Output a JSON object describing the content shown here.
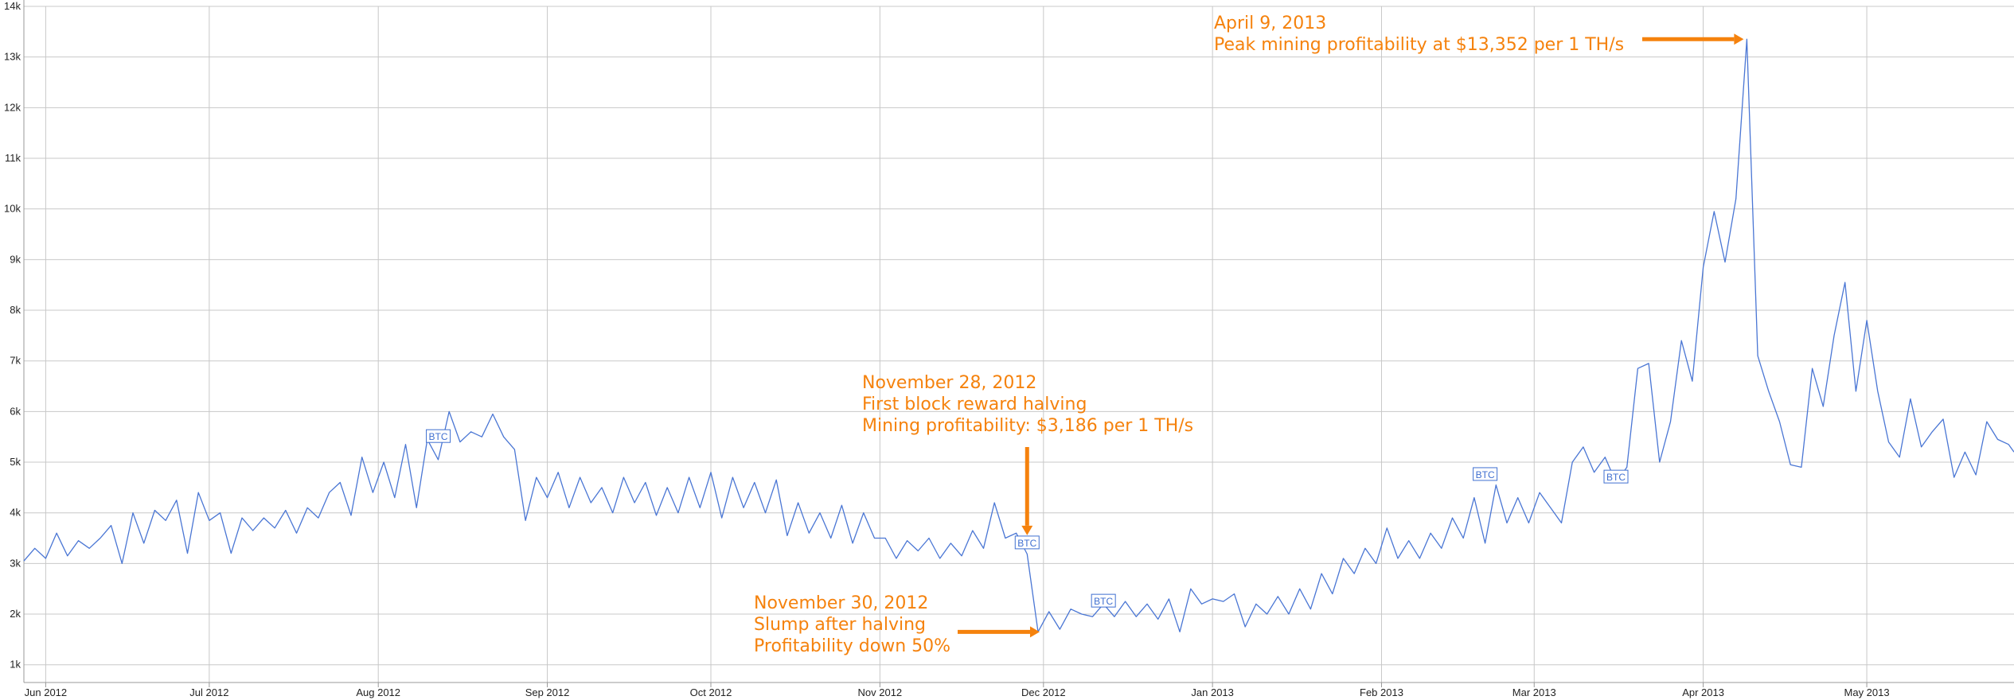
{
  "colors": {
    "line": "#4a76d4",
    "annotation": "#f5820d",
    "grid": "#c8c8c8",
    "flag": "#3f6fd0"
  },
  "chart_data": {
    "type": "line",
    "title": "",
    "xlabel": "",
    "ylabel": "",
    "x_range": [
      "2012-05-28",
      "2013-05-28"
    ],
    "ylim": [
      650,
      14000
    ],
    "grid": true,
    "yticks": [
      {
        "value": 1000,
        "label": "1k"
      },
      {
        "value": 2000,
        "label": "2k"
      },
      {
        "value": 3000,
        "label": "3k"
      },
      {
        "value": 4000,
        "label": "4k"
      },
      {
        "value": 5000,
        "label": "5k"
      },
      {
        "value": 6000,
        "label": "6k"
      },
      {
        "value": 7000,
        "label": "7k"
      },
      {
        "value": 8000,
        "label": "8k"
      },
      {
        "value": 9000,
        "label": "9k"
      },
      {
        "value": 10000,
        "label": "10k"
      },
      {
        "value": 11000,
        "label": "11k"
      },
      {
        "value": 12000,
        "label": "12k"
      },
      {
        "value": 13000,
        "label": "13k"
      },
      {
        "value": 14000,
        "label": "14k"
      }
    ],
    "xticks": [
      {
        "date": "2012-06-01",
        "label": "Jun 2012"
      },
      {
        "date": "2012-07-01",
        "label": "Jul 2012"
      },
      {
        "date": "2012-08-01",
        "label": "Aug 2012"
      },
      {
        "date": "2012-09-01",
        "label": "Sep 2012"
      },
      {
        "date": "2012-10-01",
        "label": "Oct 2012"
      },
      {
        "date": "2012-11-01",
        "label": "Nov 2012"
      },
      {
        "date": "2012-12-01",
        "label": "Dec 2012"
      },
      {
        "date": "2013-01-01",
        "label": "Jan 2013"
      },
      {
        "date": "2013-02-01",
        "label": "Feb 2013"
      },
      {
        "date": "2013-03-01",
        "label": "Mar 2013"
      },
      {
        "date": "2013-04-01",
        "label": "Apr 2013"
      },
      {
        "date": "2013-05-01",
        "label": "May 2013"
      }
    ],
    "series": [
      {
        "points": [
          [
            "2012-05-28",
            3050
          ],
          [
            "2012-05-30",
            3300
          ],
          [
            "2012-06-01",
            3100
          ],
          [
            "2012-06-03",
            3600
          ],
          [
            "2012-06-05",
            3150
          ],
          [
            "2012-06-07",
            3450
          ],
          [
            "2012-06-09",
            3300
          ],
          [
            "2012-06-11",
            3500
          ],
          [
            "2012-06-13",
            3750
          ],
          [
            "2012-06-15",
            3000
          ],
          [
            "2012-06-17",
            4000
          ],
          [
            "2012-06-19",
            3400
          ],
          [
            "2012-06-21",
            4050
          ],
          [
            "2012-06-23",
            3850
          ],
          [
            "2012-06-25",
            4250
          ],
          [
            "2012-06-27",
            3200
          ],
          [
            "2012-06-29",
            4400
          ],
          [
            "2012-07-01",
            3850
          ],
          [
            "2012-07-03",
            4000
          ],
          [
            "2012-07-05",
            3200
          ],
          [
            "2012-07-07",
            3900
          ],
          [
            "2012-07-09",
            3650
          ],
          [
            "2012-07-11",
            3900
          ],
          [
            "2012-07-13",
            3700
          ],
          [
            "2012-07-15",
            4050
          ],
          [
            "2012-07-17",
            3600
          ],
          [
            "2012-07-19",
            4100
          ],
          [
            "2012-07-21",
            3900
          ],
          [
            "2012-07-23",
            4400
          ],
          [
            "2012-07-25",
            4600
          ],
          [
            "2012-07-27",
            3950
          ],
          [
            "2012-07-29",
            5100
          ],
          [
            "2012-07-31",
            4400
          ],
          [
            "2012-08-02",
            5000
          ],
          [
            "2012-08-04",
            4300
          ],
          [
            "2012-08-06",
            5350
          ],
          [
            "2012-08-08",
            4100
          ],
          [
            "2012-08-10",
            5450
          ],
          [
            "2012-08-12",
            5050
          ],
          [
            "2012-08-14",
            6000
          ],
          [
            "2012-08-16",
            5400
          ],
          [
            "2012-08-18",
            5600
          ],
          [
            "2012-08-20",
            5500
          ],
          [
            "2012-08-22",
            5950
          ],
          [
            "2012-08-24",
            5500
          ],
          [
            "2012-08-26",
            5250
          ],
          [
            "2012-08-28",
            3850
          ],
          [
            "2012-08-30",
            4700
          ],
          [
            "2012-09-01",
            4300
          ],
          [
            "2012-09-03",
            4800
          ],
          [
            "2012-09-05",
            4100
          ],
          [
            "2012-09-07",
            4700
          ],
          [
            "2012-09-09",
            4200
          ],
          [
            "2012-09-11",
            4500
          ],
          [
            "2012-09-13",
            4000
          ],
          [
            "2012-09-15",
            4700
          ],
          [
            "2012-09-17",
            4200
          ],
          [
            "2012-09-19",
            4600
          ],
          [
            "2012-09-21",
            3950
          ],
          [
            "2012-09-23",
            4500
          ],
          [
            "2012-09-25",
            4000
          ],
          [
            "2012-09-27",
            4700
          ],
          [
            "2012-09-29",
            4100
          ],
          [
            "2012-10-01",
            4800
          ],
          [
            "2012-10-03",
            3900
          ],
          [
            "2012-10-05",
            4700
          ],
          [
            "2012-10-07",
            4100
          ],
          [
            "2012-10-09",
            4600
          ],
          [
            "2012-10-11",
            4000
          ],
          [
            "2012-10-13",
            4650
          ],
          [
            "2012-10-15",
            3550
          ],
          [
            "2012-10-17",
            4200
          ],
          [
            "2012-10-19",
            3600
          ],
          [
            "2012-10-21",
            4000
          ],
          [
            "2012-10-23",
            3500
          ],
          [
            "2012-10-25",
            4150
          ],
          [
            "2012-10-27",
            3400
          ],
          [
            "2012-10-29",
            4000
          ],
          [
            "2012-10-31",
            3500
          ],
          [
            "2012-11-02",
            3500
          ],
          [
            "2012-11-04",
            3100
          ],
          [
            "2012-11-06",
            3450
          ],
          [
            "2012-11-08",
            3250
          ],
          [
            "2012-11-10",
            3500
          ],
          [
            "2012-11-12",
            3100
          ],
          [
            "2012-11-14",
            3400
          ],
          [
            "2012-11-16",
            3150
          ],
          [
            "2012-11-18",
            3650
          ],
          [
            "2012-11-20",
            3300
          ],
          [
            "2012-11-22",
            4200
          ],
          [
            "2012-11-24",
            3500
          ],
          [
            "2012-11-26",
            3600
          ],
          [
            "2012-11-28",
            3186
          ],
          [
            "2012-11-30",
            1650
          ],
          [
            "2012-12-02",
            2050
          ],
          [
            "2012-12-04",
            1700
          ],
          [
            "2012-12-06",
            2100
          ],
          [
            "2012-12-08",
            2000
          ],
          [
            "2012-12-10",
            1950
          ],
          [
            "2012-12-12",
            2200
          ],
          [
            "2012-12-14",
            1950
          ],
          [
            "2012-12-16",
            2250
          ],
          [
            "2012-12-18",
            1950
          ],
          [
            "2012-12-20",
            2200
          ],
          [
            "2012-12-22",
            1900
          ],
          [
            "2012-12-24",
            2300
          ],
          [
            "2012-12-26",
            1650
          ],
          [
            "2012-12-28",
            2500
          ],
          [
            "2012-12-30",
            2200
          ],
          [
            "2013-01-01",
            2300
          ],
          [
            "2013-01-03",
            2250
          ],
          [
            "2013-01-05",
            2400
          ],
          [
            "2013-01-07",
            1750
          ],
          [
            "2013-01-09",
            2200
          ],
          [
            "2013-01-11",
            2000
          ],
          [
            "2013-01-13",
            2350
          ],
          [
            "2013-01-15",
            2000
          ],
          [
            "2013-01-17",
            2500
          ],
          [
            "2013-01-19",
            2100
          ],
          [
            "2013-01-21",
            2800
          ],
          [
            "2013-01-23",
            2400
          ],
          [
            "2013-01-25",
            3100
          ],
          [
            "2013-01-27",
            2800
          ],
          [
            "2013-01-29",
            3300
          ],
          [
            "2013-01-31",
            3000
          ],
          [
            "2013-02-02",
            3700
          ],
          [
            "2013-02-04",
            3100
          ],
          [
            "2013-02-06",
            3450
          ],
          [
            "2013-02-08",
            3100
          ],
          [
            "2013-02-10",
            3600
          ],
          [
            "2013-02-12",
            3300
          ],
          [
            "2013-02-14",
            3900
          ],
          [
            "2013-02-16",
            3500
          ],
          [
            "2013-02-18",
            4300
          ],
          [
            "2013-02-20",
            3400
          ],
          [
            "2013-02-22",
            4550
          ],
          [
            "2013-02-24",
            3800
          ],
          [
            "2013-02-26",
            4300
          ],
          [
            "2013-02-28",
            3800
          ],
          [
            "2013-03-02",
            4400
          ],
          [
            "2013-03-04",
            4100
          ],
          [
            "2013-03-06",
            3800
          ],
          [
            "2013-03-08",
            5000
          ],
          [
            "2013-03-10",
            5300
          ],
          [
            "2013-03-12",
            4800
          ],
          [
            "2013-03-14",
            5100
          ],
          [
            "2013-03-16",
            4600
          ],
          [
            "2013-03-18",
            4900
          ],
          [
            "2013-03-20",
            6850
          ],
          [
            "2013-03-22",
            6950
          ],
          [
            "2013-03-24",
            5000
          ],
          [
            "2013-03-26",
            5800
          ],
          [
            "2013-03-28",
            7400
          ],
          [
            "2013-03-30",
            6600
          ],
          [
            "2013-04-01",
            8850
          ],
          [
            "2013-04-03",
            9950
          ],
          [
            "2013-04-05",
            8950
          ],
          [
            "2013-04-07",
            10200
          ],
          [
            "2013-04-09",
            13352
          ],
          [
            "2013-04-11",
            7100
          ],
          [
            "2013-04-13",
            6400
          ],
          [
            "2013-04-15",
            5800
          ],
          [
            "2013-04-17",
            4950
          ],
          [
            "2013-04-19",
            4900
          ],
          [
            "2013-04-21",
            6850
          ],
          [
            "2013-04-23",
            6100
          ],
          [
            "2013-04-25",
            7500
          ],
          [
            "2013-04-27",
            8550
          ],
          [
            "2013-04-29",
            6400
          ],
          [
            "2013-05-01",
            7800
          ],
          [
            "2013-05-03",
            6400
          ],
          [
            "2013-05-05",
            5400
          ],
          [
            "2013-05-07",
            5100
          ],
          [
            "2013-05-09",
            6250
          ],
          [
            "2013-05-11",
            5300
          ],
          [
            "2013-05-13",
            5600
          ],
          [
            "2013-05-15",
            5850
          ],
          [
            "2013-05-17",
            4700
          ],
          [
            "2013-05-19",
            5200
          ],
          [
            "2013-05-21",
            4750
          ],
          [
            "2013-05-23",
            5800
          ],
          [
            "2013-05-25",
            5450
          ],
          [
            "2013-05-27",
            5350
          ],
          [
            "2013-05-28",
            5200
          ]
        ]
      }
    ],
    "flags": [
      {
        "date": "2012-08-12",
        "value": 5500,
        "label": "BTC"
      },
      {
        "date": "2012-11-28",
        "value": 3400,
        "label": "BTC"
      },
      {
        "date": "2012-12-12",
        "value": 2250,
        "label": "BTC"
      },
      {
        "date": "2013-02-20",
        "value": 4750,
        "label": "BTC"
      },
      {
        "date": "2013-03-16",
        "value": 4700,
        "label": "BTC"
      }
    ],
    "annotations": [
      {
        "lines": [
          "April 9, 2013",
          "Peak mining profitability at $13,352 per 1 TH/s"
        ],
        "arrow": {
          "direction": "right",
          "target_date": "2013-04-09",
          "target_value": 13352
        }
      },
      {
        "lines": [
          "November 28, 2012",
          "First block reward halving",
          "Mining profitability: $3,186 per 1 TH/s"
        ],
        "arrow": {
          "direction": "down",
          "target_date": "2012-11-28",
          "target_value": 3186
        }
      },
      {
        "lines": [
          "November 30, 2012",
          "Slump after halving",
          "Profitability down 50%"
        ],
        "arrow": {
          "direction": "right",
          "target_date": "2012-11-30",
          "target_value": 1650
        }
      }
    ]
  }
}
